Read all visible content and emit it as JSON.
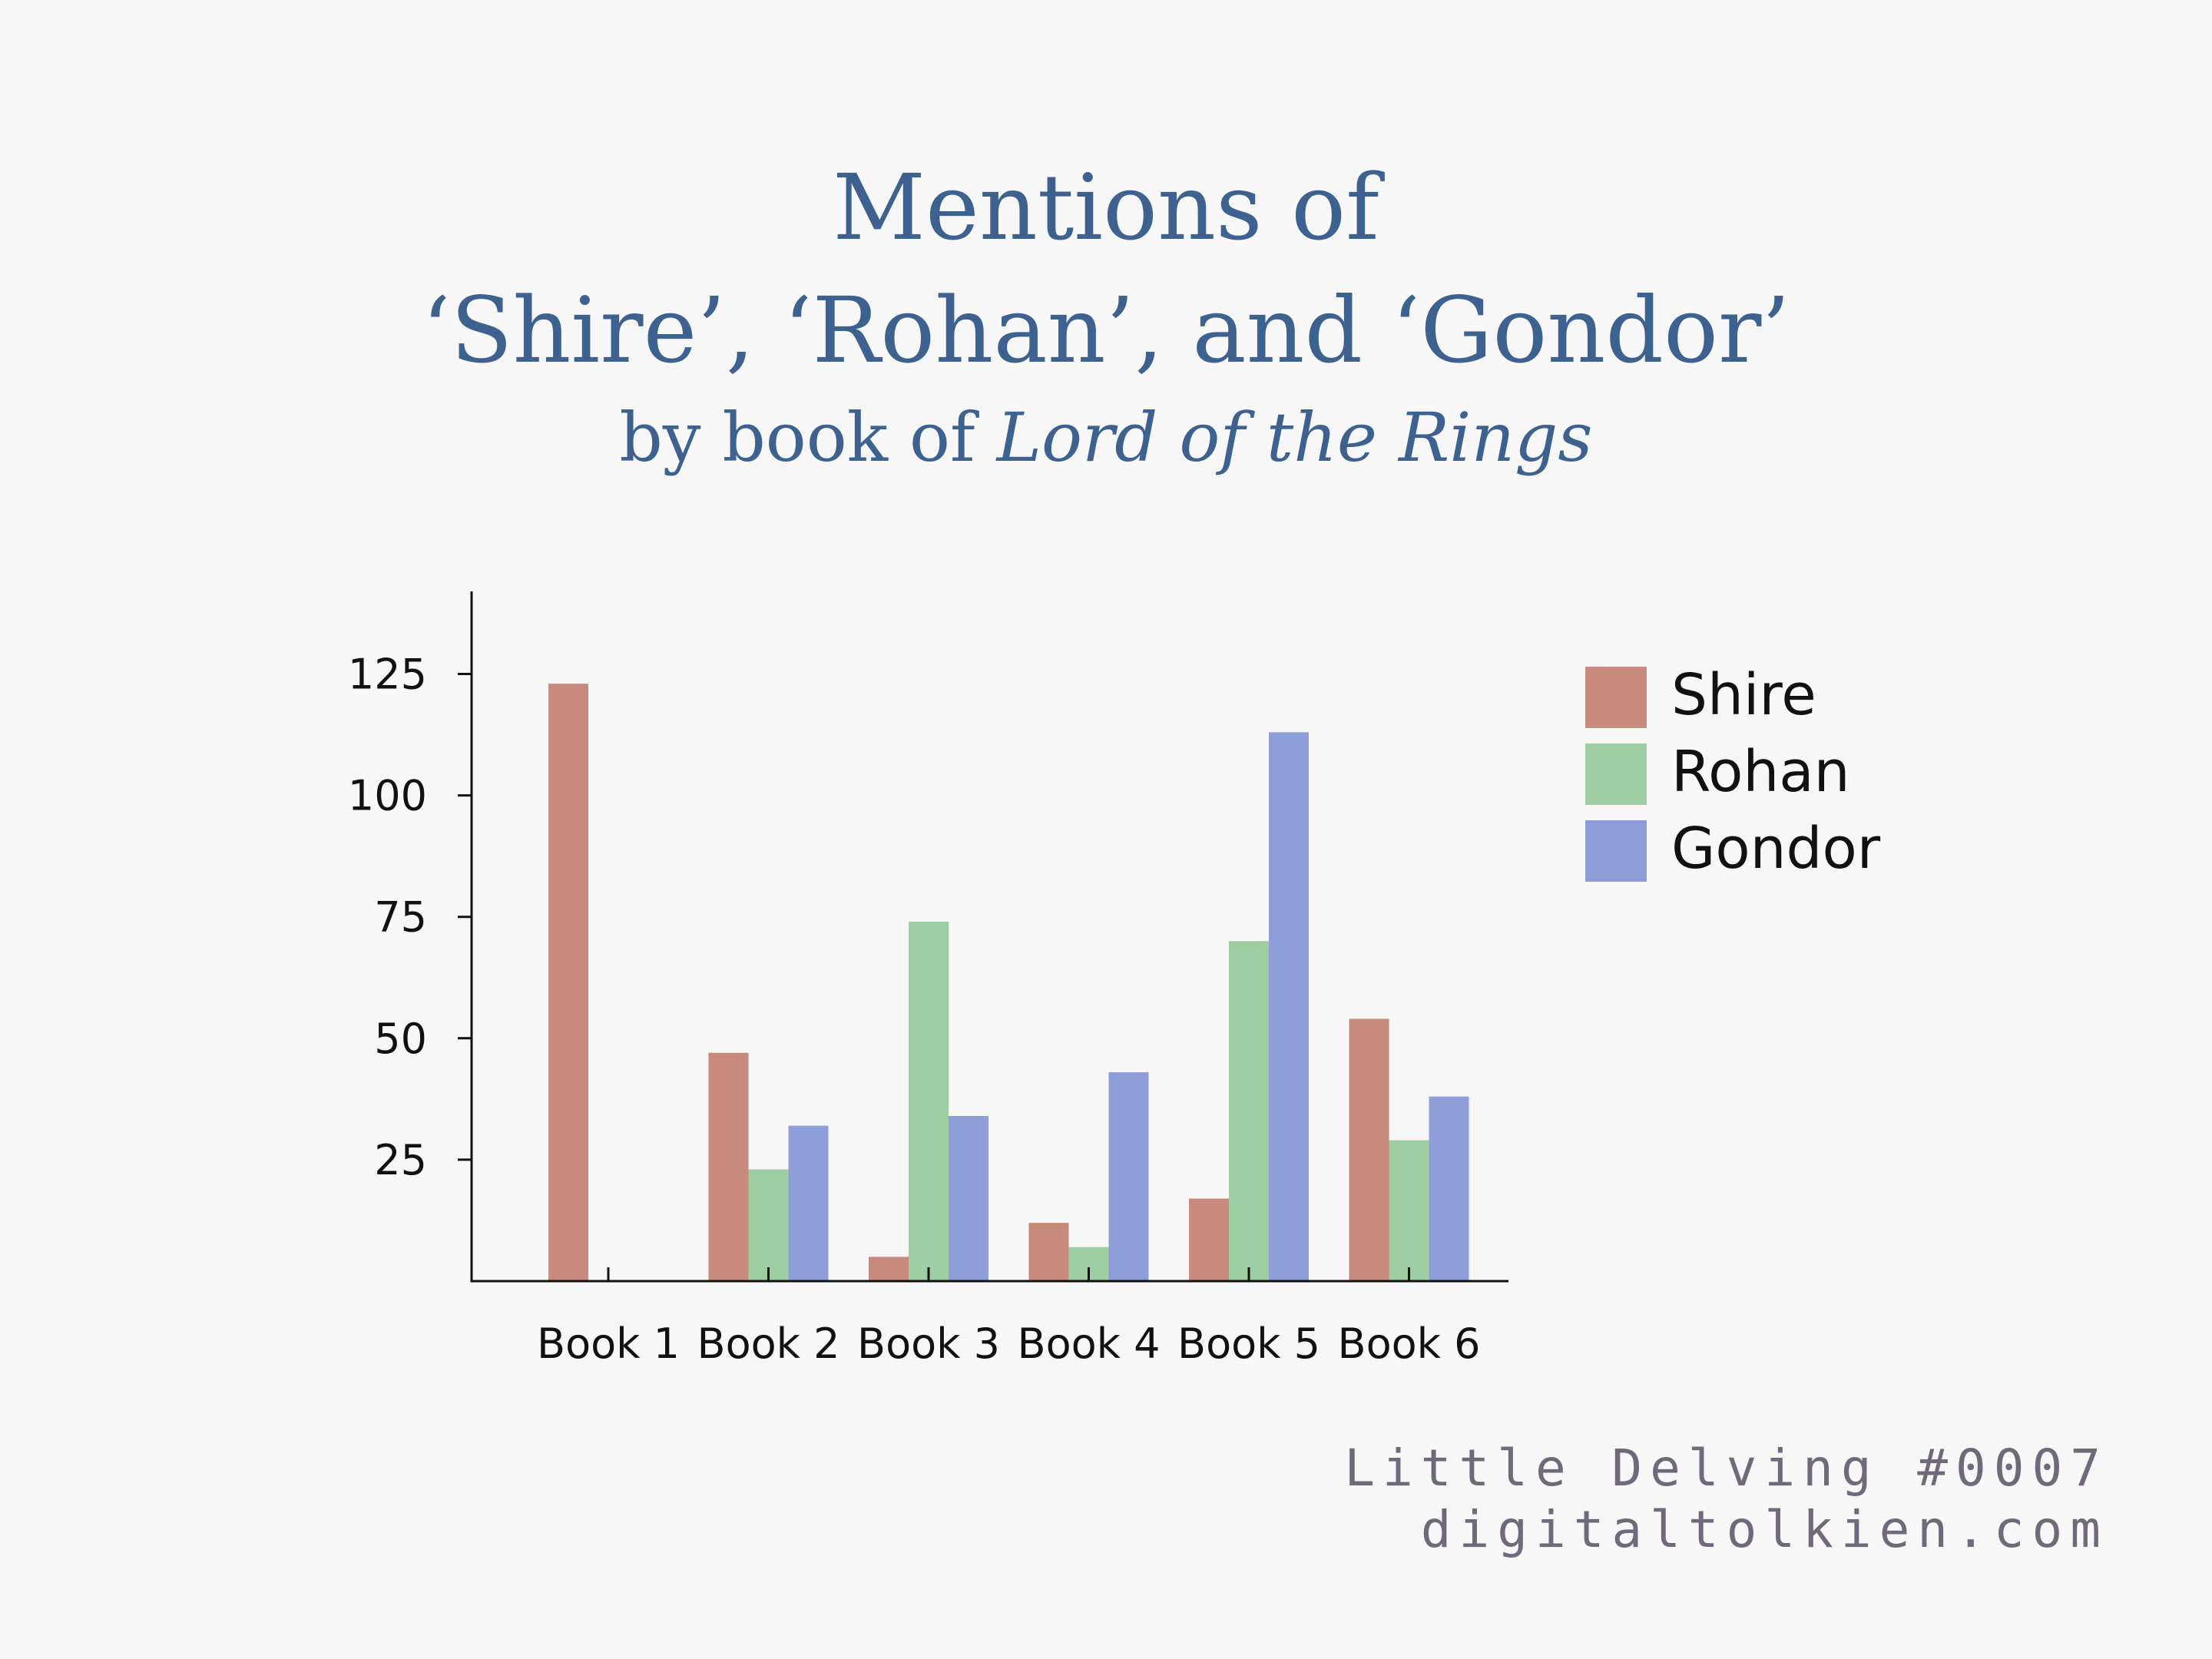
{
  "title": {
    "line1": "Mentions of",
    "line2": "‘Shire’, ‘Rohan’, and ‘Gondor’",
    "subtitle_prefix": "by book of ",
    "subtitle_italic": "Lord of the Rings"
  },
  "footer": {
    "line1": "Little Delving #0007",
    "line2": "digitaltolkien.com"
  },
  "colors": {
    "background": "#f7f7f7",
    "title": "#3e6290",
    "footer": "#6f6a7b",
    "axis": "#111111"
  },
  "chart_data": {
    "type": "bar",
    "title": "Mentions of ‘Shire’, ‘Rohan’, and ‘Gondor’",
    "subtitle": "by book of Lord of the Rings",
    "categories": [
      "Book 1",
      "Book 2",
      "Book 3",
      "Book 4",
      "Book 5",
      "Book 6"
    ],
    "series": [
      {
        "name": "Shire",
        "color": "#c98a7e",
        "values": [
          123,
          47,
          5,
          12,
          17,
          54
        ]
      },
      {
        "name": "Rohan",
        "color": "#9ecda2",
        "values": [
          0,
          23,
          74,
          7,
          70,
          29
        ]
      },
      {
        "name": "Gondor",
        "color": "#8d9ed8",
        "values": [
          0,
          32,
          34,
          43,
          113,
          38
        ]
      }
    ],
    "yticks": [
      25,
      50,
      75,
      100,
      125
    ],
    "ylim": [
      0,
      142
    ],
    "xlabel": "",
    "ylabel": "",
    "grid": false,
    "legend": "right"
  }
}
